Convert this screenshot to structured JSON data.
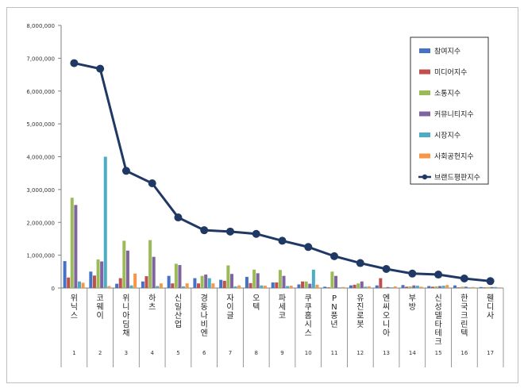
{
  "chart_data": {
    "type": "bar",
    "title": "",
    "xlabel": "",
    "ylabel": "",
    "ylim": [
      0,
      8000000
    ],
    "y_ticks": [
      "0",
      "1,000,000",
      "2,000,000",
      "3,000,000",
      "4,000,000",
      "5,000,000",
      "6,000,000",
      "7,000,000",
      "8,000,000"
    ],
    "y_tick_values": [
      0,
      1000000,
      2000000,
      3000000,
      4000000,
      5000000,
      6000000,
      7000000,
      8000000
    ],
    "categories": [
      "위닉스",
      "코웨이",
      "위니아딤채",
      "하츠",
      "신일산업",
      "경동나비엔",
      "자이글",
      "오텍",
      "파세코",
      "쿠쿠홈시스",
      "PN풍년",
      "유진로봇",
      "엔씨오니아",
      "부방",
      "신성델타테크",
      "한국크린텍",
      "휀디사"
    ],
    "ranks": [
      "1",
      "2",
      "3",
      "4",
      "5",
      "6",
      "7",
      "8",
      "9",
      "10",
      "11",
      "12",
      "13",
      "14",
      "15",
      "16",
      "17"
    ],
    "series": [
      {
        "name": "참여지수",
        "color": "#4472c4",
        "values": [
          820000,
          500000,
          130000,
          200000,
          370000,
          300000,
          250000,
          340000,
          170000,
          110000,
          40000,
          80000,
          80000,
          90000,
          60000,
          80000,
          30000
        ]
      },
      {
        "name": "미디어지수",
        "color": "#c0504d",
        "values": [
          320000,
          380000,
          300000,
          360000,
          140000,
          140000,
          220000,
          150000,
          170000,
          200000,
          20000,
          100000,
          300000,
          40000,
          40000,
          20000,
          20000
        ]
      },
      {
        "name": "소통지수",
        "color": "#9bbb59",
        "values": [
          2750000,
          870000,
          1440000,
          1460000,
          740000,
          370000,
          690000,
          560000,
          550000,
          200000,
          500000,
          140000,
          20000,
          50000,
          50000,
          40000,
          30000
        ]
      },
      {
        "name": "커뮤니티지수",
        "color": "#8064a2",
        "values": [
          2530000,
          810000,
          1140000,
          950000,
          700000,
          410000,
          430000,
          450000,
          370000,
          130000,
          370000,
          200000,
          30000,
          80000,
          60000,
          40000,
          30000
        ]
      },
      {
        "name": "시장지수",
        "color": "#4bacc6",
        "values": [
          200000,
          4000000,
          80000,
          60000,
          50000,
          300000,
          50000,
          80000,
          60000,
          560000,
          20000,
          40000,
          20000,
          70000,
          70000,
          20000,
          30000
        ]
      },
      {
        "name": "사회공헌지수",
        "color": "#f79646",
        "values": [
          160000,
          60000,
          440000,
          140000,
          140000,
          140000,
          80000,
          70000,
          70000,
          100000,
          30000,
          50000,
          50000,
          40000,
          90000,
          30000,
          20000
        ]
      }
    ],
    "line_series": {
      "name": "브랜드평판지수",
      "color": "#1f3864",
      "values": [
        6850000,
        6680000,
        3570000,
        3190000,
        2150000,
        1760000,
        1720000,
        1650000,
        1440000,
        1250000,
        970000,
        760000,
        580000,
        440000,
        410000,
        290000,
        210000
      ]
    },
    "legend_position": "top-right",
    "grid": false
  }
}
